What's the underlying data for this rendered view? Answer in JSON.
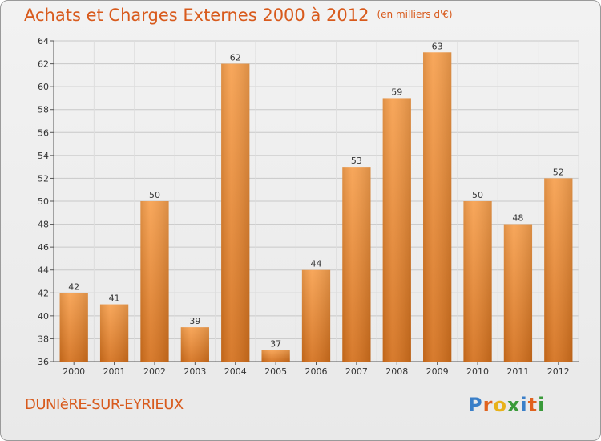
{
  "title": "Achats et Charges Externes 2000 à 2012",
  "unit": "(en milliers d'€)",
  "commune": "DUNIèRE-SUR-EYRIEUX",
  "logo": {
    "letters": [
      "P",
      "r",
      "o",
      "x",
      "i",
      "t",
      "i"
    ],
    "colors": [
      "#3a7fc8",
      "#e0621e",
      "#e8b21a",
      "#3a9a3a",
      "#3a7fc8",
      "#e0621e",
      "#3a9a3a"
    ]
  },
  "colors": {
    "bar_light": "#f7a04e",
    "bar_dark": "#d4701c",
    "grid": "#c8c8c8",
    "title": "#d85a1c"
  },
  "chart_data": {
    "type": "bar",
    "title": "Achats et Charges Externes 2000 à 2012",
    "xlabel": "",
    "ylabel": "",
    "categories": [
      "2000",
      "2001",
      "2002",
      "2003",
      "2004",
      "2005",
      "2006",
      "2007",
      "2008",
      "2009",
      "2010",
      "2011",
      "2012"
    ],
    "values": [
      42,
      41,
      50,
      39,
      62,
      37,
      44,
      53,
      59,
      63,
      50,
      48,
      52
    ],
    "ylim": [
      36,
      64
    ],
    "yticks": [
      36,
      38,
      40,
      42,
      44,
      46,
      48,
      50,
      52,
      54,
      56,
      58,
      60,
      62,
      64
    ],
    "grid": true,
    "legend": "none"
  }
}
